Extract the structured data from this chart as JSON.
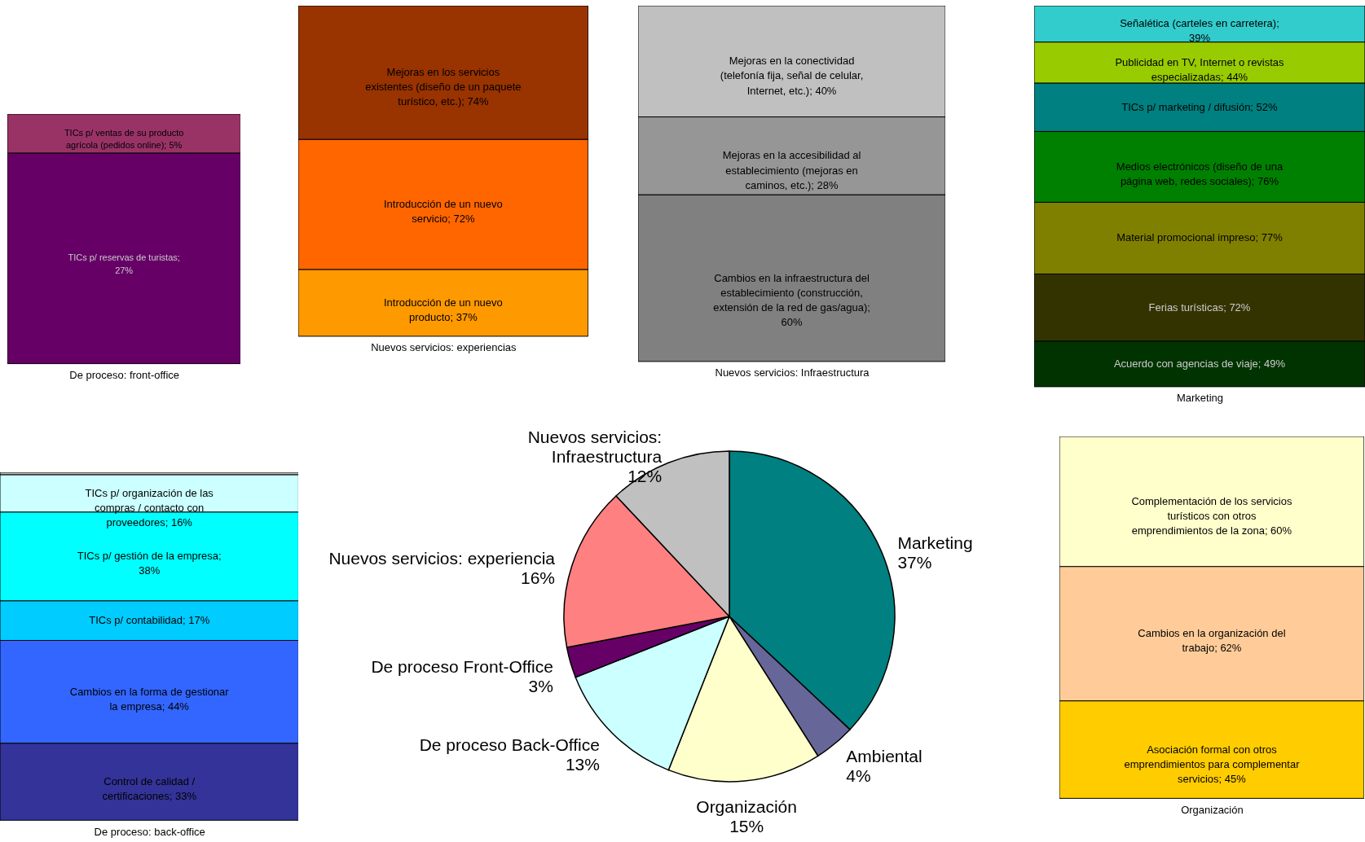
{
  "chart_data": [
    {
      "type": "bar",
      "stacked": true,
      "xlabel": "De proceso: front-office",
      "categories": [
        null
      ],
      "tick_labels": false,
      "series": [
        {
          "color": "#660066",
          "values": [
            27
          ],
          "value_labels": [
            "TICs p/ reservas de turistas; 27%"
          ]
        },
        {
          "color": "#993366",
          "values": [
            5
          ],
          "value_labels": [
            "TICs p/ ventas de su producto agrícola (pedidos online); 5%"
          ]
        }
      ]
    },
    {
      "type": "bar",
      "stacked": true,
      "xlabel": "Nuevos servicios: experiencias",
      "categories": [
        null
      ],
      "tick_labels": false,
      "series": [
        {
          "color": "#ff9900",
          "values": [
            37
          ],
          "value_labels": [
            "Introducción de un nuevo producto; 37%"
          ]
        },
        {
          "color": "#ff6600",
          "values": [
            72
          ],
          "value_labels": [
            "Introducción de un nuevo servicio; 72%"
          ]
        },
        {
          "color": "#993300",
          "values": [
            74
          ],
          "value_labels": [
            "Mejoras en los servicios existentes (diseño de un paquete turístico, etc.); 74%"
          ]
        }
      ]
    },
    {
      "type": "bar",
      "stacked": true,
      "xlabel": "Nuevos servicios: Infraestructura",
      "categories": [
        null
      ],
      "tick_labels": false,
      "series": [
        {
          "color": "#808080",
          "values": [
            60
          ],
          "value_labels": [
            "Cambios en la infraestructura del establecimiento (construcción, extensión de la red de gas/agua); 60%"
          ]
        },
        {
          "color": "#969696",
          "values": [
            28
          ],
          "value_labels": [
            "Mejoras en la accesibilidad al establecimiento (mejoras en caminos, etc.); 28%"
          ]
        },
        {
          "color": "#c0c0c0",
          "values": [
            40
          ],
          "value_labels": [
            "Mejoras en la conectividad (telefonía fija, señal de celular, Internet, etc.); 40%"
          ]
        }
      ]
    },
    {
      "type": "bar",
      "stacked": true,
      "xlabel": "Marketing",
      "categories": [
        null
      ],
      "tick_labels": false,
      "series": [
        {
          "color": "#003300",
          "values": [
            49
          ],
          "value_labels": [
            "Acuerdo con agencias de viaje; 49%"
          ]
        },
        {
          "color": "#333300",
          "values": [
            72
          ],
          "value_labels": [
            "Ferias turísticas; 72%"
          ]
        },
        {
          "color": "#808000",
          "values": [
            77
          ],
          "value_labels": [
            "Material promocional impreso; 77%"
          ]
        },
        {
          "color": "#008000",
          "values": [
            76
          ],
          "value_labels": [
            "Medios electrónicos (diseño de una página web, redes sociales); 76%"
          ]
        },
        {
          "color": "#008080",
          "values": [
            52
          ],
          "value_labels": [
            "TICs p/ marketing / difusión; 52%"
          ]
        },
        {
          "color": "#99cc00",
          "values": [
            44
          ],
          "value_labels": [
            "Publicidad en TV, Internet o revistas especializadas; 44%"
          ]
        },
        {
          "color": "#33cccc",
          "values": [
            39
          ],
          "value_labels": [
            "Señalética (carteles en carretera); 39%"
          ]
        }
      ]
    },
    {
      "type": "bar",
      "stacked": true,
      "xlabel": "De proceso: back-office",
      "categories": [
        null
      ],
      "tick_labels": false,
      "series": [
        {
          "color": "#333399",
          "values": [
            33
          ],
          "value_labels": [
            "Control de calidad / certificaciones; 33%"
          ]
        },
        {
          "color": "#3366ff",
          "values": [
            44
          ],
          "value_labels": [
            "Cambios en la forma de gestionar la empresa; 44%"
          ]
        },
        {
          "color": "#00ccff",
          "values": [
            17
          ],
          "value_labels": [
            "TICs p/ contabilidad; 17%"
          ]
        },
        {
          "color": "#00ffff",
          "values": [
            38
          ],
          "value_labels": [
            "TICs p/ gestión de la empresa; 38%"
          ]
        },
        {
          "color": "#ccffff",
          "values": [
            16
          ],
          "value_labels": [
            "TICs p/ organización de las compras / contacto con proveedores; 16%"
          ]
        },
        {
          "color": "#c0c0c0",
          "values": [
            1
          ],
          "value_labels": [
            null
          ]
        }
      ]
    },
    {
      "type": "pie",
      "categories": [
        "Marketing",
        "Ambiental",
        "Organización",
        "De proceso Back-Office",
        "De proceso Front-Office",
        "Nuevos servicios: experiencia",
        "Nuevos servicios: Infraestructura"
      ],
      "values": [
        37,
        4,
        15,
        13,
        3,
        16,
        12
      ],
      "colors": [
        "#008080",
        "#666699",
        "#ffffcc",
        "#ccffff",
        "#660066",
        "#ff8080",
        "#c0c0c0"
      ],
      "value_labels": [
        "37%",
        "4%",
        "15%",
        "13%",
        "3%",
        "16%",
        "12%"
      ]
    },
    {
      "type": "bar",
      "stacked": true,
      "xlabel": "Organización",
      "categories": [
        null
      ],
      "tick_labels": false,
      "series": [
        {
          "color": "#ffcc00",
          "values": [
            45
          ],
          "value_labels": [
            "Asociación formal con otros emprendimientos para complementar servicios; 45%"
          ]
        },
        {
          "color": "#ffcc99",
          "values": [
            62
          ],
          "value_labels": [
            "Cambios en la organización del trabajo; 62%"
          ]
        },
        {
          "color": "#ffffcc",
          "values": [
            60
          ],
          "value_labels": [
            "Complementación de los servicios turísticos con otros emprendimientos de la zona; 60%"
          ]
        }
      ]
    }
  ]
}
